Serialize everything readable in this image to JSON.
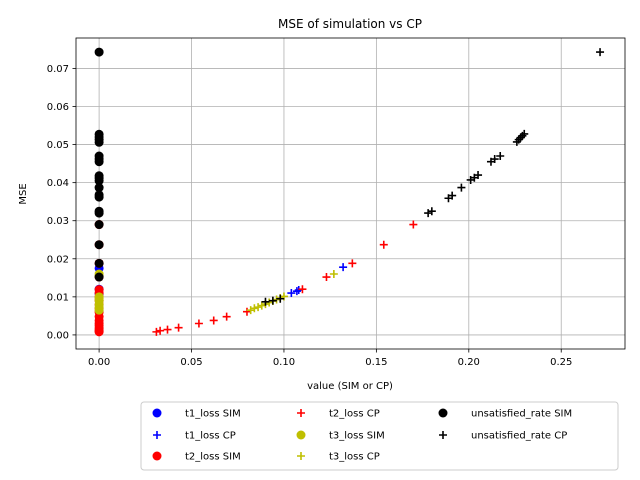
{
  "chart_data": {
    "type": "scatter",
    "title": "MSE of simulation vs CP",
    "xlabel": "value (SIM or CP)",
    "ylabel": "MSE",
    "xlim": [
      -0.0125,
      0.2845
    ],
    "ylim": [
      -0.0037,
      0.078
    ],
    "xticks": [
      0.0,
      0.05,
      0.1,
      0.15,
      0.2,
      0.25
    ],
    "xtick_labels": [
      "0.00",
      "0.05",
      "0.10",
      "0.15",
      "0.20",
      "0.25"
    ],
    "yticks": [
      0.0,
      0.01,
      0.02,
      0.03,
      0.04,
      0.05,
      0.06,
      0.07
    ],
    "ytick_labels": [
      "0.00",
      "0.01",
      "0.02",
      "0.03",
      "0.04",
      "0.05",
      "0.06",
      "0.07"
    ],
    "grid": true,
    "legend_position": "below",
    "series": [
      {
        "name": "t1_loss SIM",
        "marker": "circle",
        "color": "#0000ff",
        "x": [
          0,
          0,
          0
        ],
        "y": [
          0.0175,
          0.012,
          0.0108
        ]
      },
      {
        "name": "t1_loss CP",
        "marker": "plus",
        "color": "#0000ff",
        "x": [
          0.0,
          0.104,
          0.107,
          0.108,
          0.132
        ],
        "y": [
          0.0175,
          0.011,
          0.0115,
          0.0118,
          0.0178
        ]
      },
      {
        "name": "t2_loss SIM",
        "marker": "circle",
        "color": "#ff0000",
        "x": [
          0,
          0,
          0,
          0,
          0,
          0,
          0,
          0,
          0,
          0,
          0,
          0,
          0,
          0,
          0,
          0,
          0,
          0,
          0
        ],
        "y": [
          0.029,
          0.0237,
          0.0188,
          0.0152,
          0.0119,
          0.011,
          0.01,
          0.009,
          0.008,
          0.007,
          0.006,
          0.0048,
          0.0038,
          0.003,
          0.0025,
          0.0018,
          0.0013,
          0.001,
          0.0008
        ]
      },
      {
        "name": "t2_loss CP",
        "marker": "plus",
        "color": "#ff0000",
        "x": [
          0.031,
          0.033,
          0.037,
          0.043,
          0.054,
          0.062,
          0.069,
          0.08,
          0.11,
          0.123,
          0.137,
          0.154,
          0.17
        ],
        "y": [
          0.0008,
          0.0011,
          0.0014,
          0.0019,
          0.003,
          0.0038,
          0.0048,
          0.0061,
          0.012,
          0.0152,
          0.0188,
          0.0237,
          0.029
        ]
      },
      {
        "name": "t3_loss SIM",
        "marker": "circle",
        "color": "#bfbf00",
        "x": [
          0,
          0,
          0,
          0,
          0,
          0,
          0,
          0
        ],
        "y": [
          0.016,
          0.0155,
          0.01,
          0.0095,
          0.009,
          0.008,
          0.0072,
          0.0065
        ]
      },
      {
        "name": "t3_loss CP",
        "marker": "plus",
        "color": "#bfbf00",
        "x": [
          0.082,
          0.084,
          0.086,
          0.088,
          0.09,
          0.092,
          0.094,
          0.096,
          0.098,
          0.1,
          0.127
        ],
        "y": [
          0.0065,
          0.007,
          0.0073,
          0.0077,
          0.0081,
          0.0085,
          0.0089,
          0.0093,
          0.0097,
          0.0101,
          0.016
        ]
      },
      {
        "name": "unsatisfied_rate SIM",
        "marker": "circle",
        "color": "#000000",
        "x": [
          0,
          0,
          0,
          0,
          0,
          0,
          0,
          0,
          0,
          0,
          0,
          0,
          0,
          0,
          0,
          0,
          0,
          0,
          0,
          0
        ],
        "y": [
          0.0743,
          0.0527,
          0.052,
          0.0513,
          0.0506,
          0.047,
          0.0462,
          0.0455,
          0.0418,
          0.0412,
          0.0405,
          0.0387,
          0.0368,
          0.0362,
          0.0325,
          0.032,
          0.029,
          0.0237,
          0.0188,
          0.0152
        ]
      },
      {
        "name": "unsatisfied_rate CP",
        "marker": "plus",
        "color": "#000000",
        "x": [
          0.271,
          0.23,
          0.229,
          0.228,
          0.227,
          0.226,
          0.217,
          0.214,
          0.212,
          0.205,
          0.203,
          0.201,
          0.196,
          0.191,
          0.189,
          0.18,
          0.178,
          0.098,
          0.094,
          0.09
        ],
        "y": [
          0.0743,
          0.0528,
          0.0523,
          0.0518,
          0.0513,
          0.0507,
          0.047,
          0.0462,
          0.0455,
          0.042,
          0.0413,
          0.0407,
          0.0387,
          0.0366,
          0.0359,
          0.0325,
          0.032,
          0.0095,
          0.009,
          0.0087
        ]
      }
    ]
  }
}
